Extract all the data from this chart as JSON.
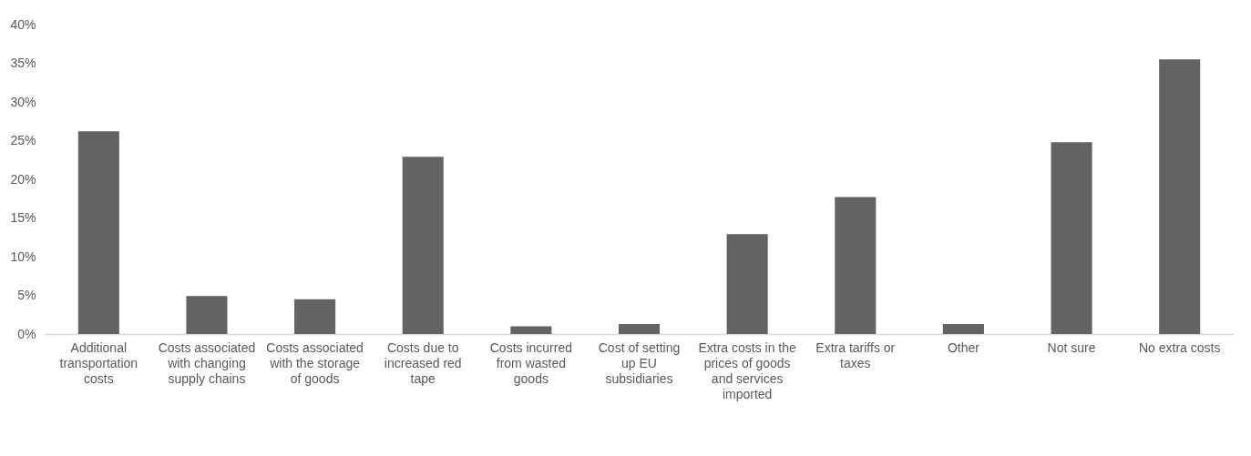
{
  "chart_data": {
    "type": "bar",
    "categories": [
      "Additional transportation costs",
      "Costs associated with changing supply chains",
      "Costs associated with the storage of goods",
      "Costs due to increased red tape",
      "Costs incurred from wasted goods",
      "Cost of setting up EU subsidiaries",
      "Extra costs in the prices of goods and services imported",
      "Extra tariffs or taxes",
      "Other",
      "Not sure",
      "No extra costs"
    ],
    "values": [
      26.2,
      4.9,
      4.5,
      22.9,
      1.0,
      1.3,
      12.9,
      17.7,
      1.3,
      24.8,
      35.5
    ],
    "color": "#636363",
    "ylim": [
      0,
      40
    ],
    "yticks": [
      {
        "value": 0,
        "label": "0%"
      },
      {
        "value": 5,
        "label": "5%"
      },
      {
        "value": 10,
        "label": "10%"
      },
      {
        "value": 15,
        "label": "15%"
      },
      {
        "value": 20,
        "label": "20%"
      },
      {
        "value": 25,
        "label": "25%"
      },
      {
        "value": 30,
        "label": "30%"
      },
      {
        "value": 35,
        "label": "35%"
      },
      {
        "value": 40,
        "label": "40%"
      }
    ],
    "grid": false
  }
}
